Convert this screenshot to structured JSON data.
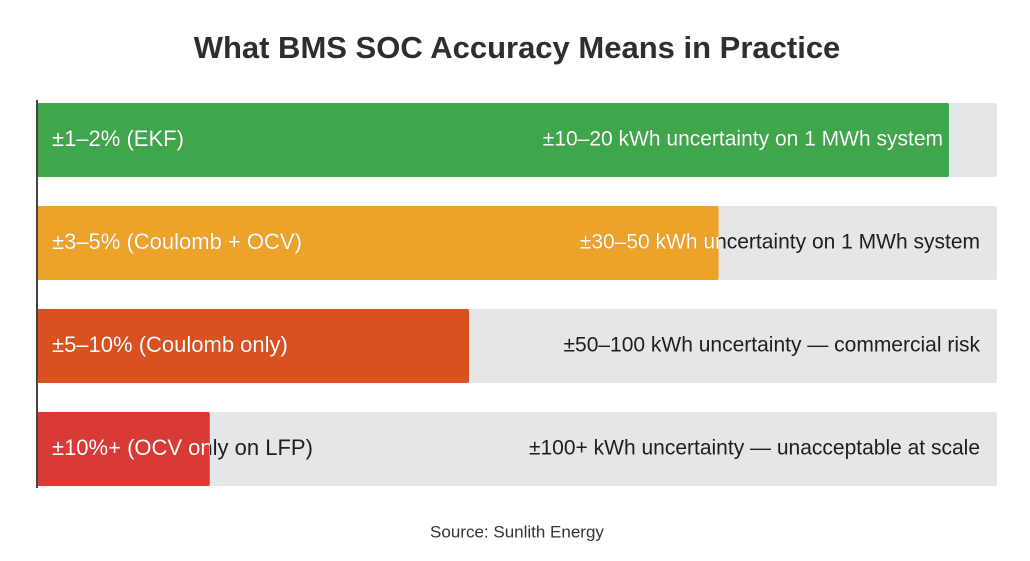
{
  "chart_data": {
    "type": "bar",
    "orientation": "horizontal",
    "title": "What BMS SOC Accuracy Means in Practice",
    "categories": [
      "±1–2% (EKF)",
      "±3–5% (Coulomb + OCV)",
      "±5–10% (Coulomb only)",
      "±10%+ (OCV only on LFP)"
    ],
    "annotations": [
      "±10–20 kWh uncertainty on 1 MWh system",
      "±30–50 kWh uncertainty on 1 MWh system",
      "±50–100 kWh uncertainty — commercial risk",
      "±100+ kWh uncertainty — unacceptable at scale"
    ],
    "values": [
      95,
      71,
      45,
      18
    ],
    "colors": [
      "#3fa64b",
      "#eda32a",
      "#d8511f",
      "#d93a36"
    ],
    "xlim": [
      0,
      100
    ],
    "source": "Source: Sunlith Energy"
  }
}
